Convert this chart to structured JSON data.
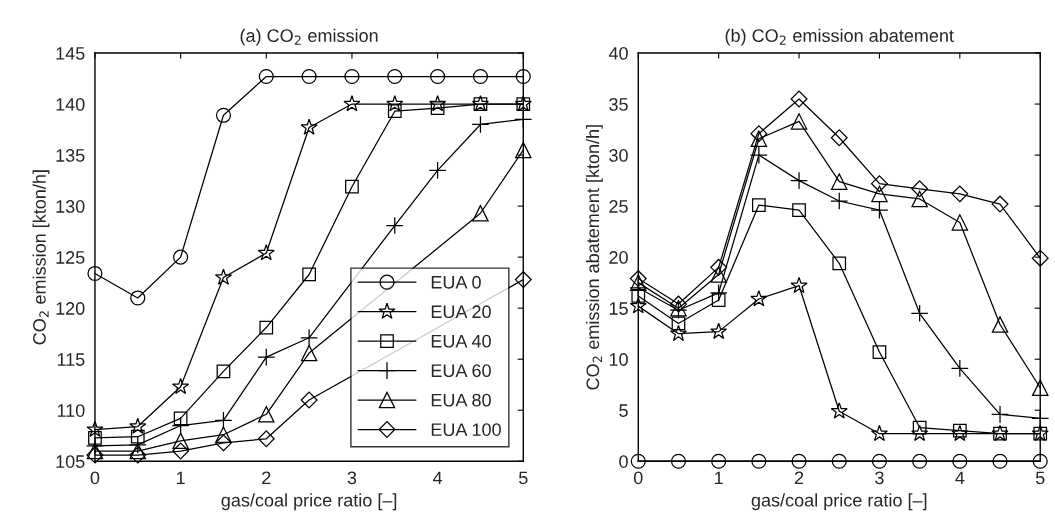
{
  "chart_data": [
    {
      "type": "line",
      "title": "(a) CO$_{2}$ emission",
      "xlabel": "gas/coal price ratio [–]",
      "ylabel": "CO$_{2}$ emission [kton/h]",
      "x": [
        0,
        0.5,
        1,
        1.5,
        2,
        2.5,
        3,
        3.5,
        4,
        4.5,
        5
      ],
      "xlim": [
        0,
        5
      ],
      "xticks": [
        0,
        1,
        2,
        3,
        4,
        5
      ],
      "ylim": [
        105,
        145
      ],
      "yticks": [
        105,
        110,
        115,
        120,
        125,
        130,
        135,
        140,
        145
      ],
      "grid": false,
      "legend": "bottom right",
      "line_style": "solid",
      "series": [
        {
          "name": "EUA 0",
          "color": "#000000",
          "marker": "circle",
          "values": [
            123.4,
            121.0,
            125.0,
            138.9,
            142.7,
            142.7,
            142.7,
            142.7,
            142.7,
            142.7,
            142.7
          ]
        },
        {
          "name": "EUA 20",
          "color": "#000000",
          "marker": "star",
          "values": [
            108.1,
            108.4,
            112.3,
            123.0,
            125.4,
            137.7,
            140.0,
            140.0,
            140.0,
            140.0,
            140.0
          ]
        },
        {
          "name": "EUA 40",
          "color": "#000000",
          "marker": "square",
          "values": [
            107.3,
            107.4,
            109.2,
            113.8,
            118.1,
            123.3,
            131.9,
            139.3,
            139.6,
            140.0,
            140.0
          ]
        },
        {
          "name": "EUA 60",
          "color": "#000000",
          "marker": "cross",
          "values": [
            106.5,
            106.6,
            108.5,
            109.0,
            115.2,
            117.1,
            null,
            128.1,
            133.5,
            138.0,
            138.5
          ]
        },
        {
          "name": "EUA 80",
          "color": "#000000",
          "marker": "triangle",
          "values": [
            106.0,
            106.0,
            107.0,
            107.6,
            109.6,
            115.6,
            null,
            null,
            null,
            129.3,
            135.5
          ]
        },
        {
          "name": "EUA 100",
          "color": "#000000",
          "marker": "diamond",
          "values": [
            105.6,
            105.6,
            106.0,
            106.8,
            107.2,
            111.0,
            null,
            null,
            null,
            null,
            122.8
          ]
        }
      ]
    },
    {
      "type": "line",
      "title": "(b) CO$_{2}$ emission abatement",
      "xlabel": "gas/coal price ratio [–]",
      "ylabel": "CO$_{2}$ emission abatement [kton/h]",
      "x": [
        0,
        0.5,
        1,
        1.5,
        2,
        2.5,
        3,
        3.5,
        4,
        4.5,
        5
      ],
      "xlim": [
        0,
        5
      ],
      "xticks": [
        0,
        1,
        2,
        3,
        4,
        5
      ],
      "ylim": [
        0,
        40
      ],
      "yticks": [
        0,
        5,
        10,
        15,
        20,
        25,
        30,
        35,
        40
      ],
      "grid": false,
      "legend": false,
      "line_style": "solid",
      "series": [
        {
          "color": "#000000",
          "marker": "circle",
          "values": [
            0,
            0,
            0,
            0,
            0,
            0,
            0,
            0,
            0,
            0,
            0
          ]
        },
        {
          "color": "#000000",
          "marker": "star",
          "values": [
            15.2,
            12.5,
            12.7,
            15.9,
            17.2,
            4.9,
            2.7,
            2.7,
            2.7,
            2.7,
            2.7
          ]
        },
        {
          "color": "#000000",
          "marker": "square",
          "values": [
            16.2,
            13.5,
            15.8,
            25.1,
            24.6,
            19.4,
            10.7,
            3.3,
            3.0,
            2.7,
            2.7
          ]
        },
        {
          "color": "#000000",
          "marker": "cross",
          "values": [
            17.0,
            14.8,
            16.5,
            30.0,
            27.5,
            25.5,
            24.6,
            14.5,
            9.1,
            4.6,
            4.2
          ]
        },
        {
          "color": "#000000",
          "marker": "triangle",
          "values": [
            17.5,
            15.0,
            18.3,
            31.6,
            33.3,
            27.4,
            26.2,
            25.7,
            23.4,
            13.4,
            7.2
          ]
        },
        {
          "color": "#000000",
          "marker": "diamond",
          "values": [
            17.9,
            15.4,
            19.0,
            32.1,
            35.5,
            31.7,
            27.2,
            26.7,
            26.2,
            25.2,
            19.9
          ]
        }
      ]
    }
  ]
}
